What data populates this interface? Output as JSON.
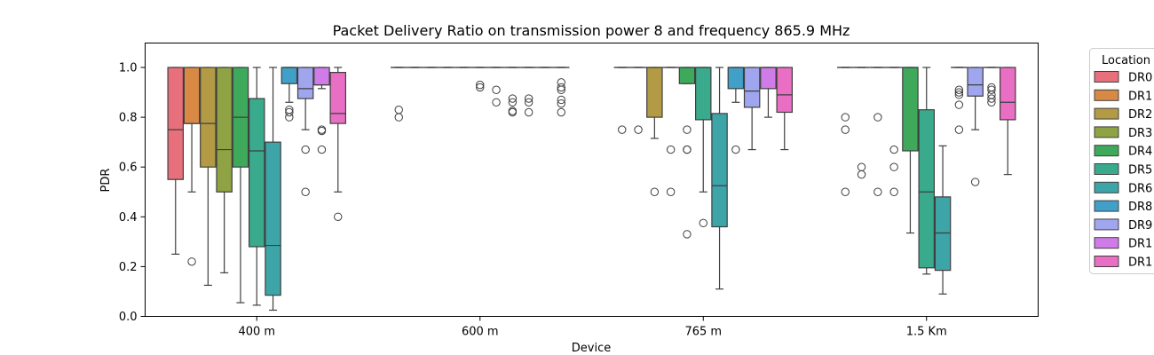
{
  "chart_data": {
    "type": "box",
    "title": "Packet Delivery Ratio on transmission power 8 and frequency 865.9 MHz",
    "xlabel": "Device",
    "ylabel": "PDR",
    "ylim": [
      0,
      1.1
    ],
    "yticks": [
      "0.0",
      "0.2",
      "0.4",
      "0.6",
      "0.8",
      "1.0"
    ],
    "grid": false,
    "legend": {
      "title": "Location",
      "placement": "right",
      "entries": [
        {
          "label": "DR0",
          "color": "#e8707c"
        },
        {
          "label": "DR1",
          "color": "#d88a45"
        },
        {
          "label": "DR2",
          "color": "#b39a45"
        },
        {
          "label": "DR3",
          "color": "#8fa244"
        },
        {
          "label": "DR4",
          "color": "#3ea95a"
        },
        {
          "label": "DR5",
          "color": "#3aaa8c"
        },
        {
          "label": "DR6",
          "color": "#3da5a8"
        },
        {
          "label": "DR8",
          "color": "#41a0c8"
        },
        {
          "label": "DR9",
          "color": "#a0a6ee"
        },
        {
          "label": "DR1",
          "color": "#d07ce8"
        },
        {
          "label": "DR1",
          "color": "#e86fc4"
        }
      ]
    },
    "categories": [
      "400 m",
      "600 m",
      "765 m",
      "1.5 Km"
    ],
    "series": [
      {
        "label_index": 0,
        "boxes": [
          {
            "q1": 0.55,
            "median": 0.75,
            "q3": 1.0,
            "whislo": 0.25,
            "whishi": 1.0,
            "fliers": []
          },
          {
            "q1": 1.0,
            "median": 1.0,
            "q3": 1.0,
            "whislo": 1.0,
            "whishi": 1.0,
            "fliers": [
              0.83,
              0.8
            ]
          },
          {
            "q1": 1.0,
            "median": 1.0,
            "q3": 1.0,
            "whislo": 1.0,
            "whishi": 1.0,
            "fliers": [
              0.75
            ]
          },
          {
            "q1": 1.0,
            "median": 1.0,
            "q3": 1.0,
            "whislo": 1.0,
            "whishi": 1.0,
            "fliers": [
              0.8,
              0.75,
              0.5
            ]
          }
        ]
      },
      {
        "label_index": 1,
        "boxes": [
          {
            "q1": 0.775,
            "median": 0.775,
            "q3": 1.0,
            "whislo": 0.5,
            "whishi": 1.0,
            "fliers": [
              0.22
            ]
          },
          {
            "q1": 1.0,
            "median": 1.0,
            "q3": 1.0,
            "whislo": 1.0,
            "whishi": 1.0,
            "fliers": []
          },
          {
            "q1": 1.0,
            "median": 1.0,
            "q3": 1.0,
            "whislo": 1.0,
            "whishi": 1.0,
            "fliers": [
              0.75
            ]
          },
          {
            "q1": 1.0,
            "median": 1.0,
            "q3": 1.0,
            "whislo": 1.0,
            "whishi": 1.0,
            "fliers": [
              0.6,
              0.57
            ]
          }
        ]
      },
      {
        "label_index": 2,
        "boxes": [
          {
            "q1": 0.6,
            "median": 0.775,
            "q3": 1.0,
            "whislo": 0.125,
            "whishi": 1.0,
            "fliers": []
          },
          {
            "q1": 1.0,
            "median": 1.0,
            "q3": 1.0,
            "whislo": 1.0,
            "whishi": 1.0,
            "fliers": []
          },
          {
            "q1": 0.8,
            "median": 1.0,
            "q3": 1.0,
            "whislo": 0.715,
            "whishi": 1.0,
            "fliers": [
              0.5
            ]
          },
          {
            "q1": 1.0,
            "median": 1.0,
            "q3": 1.0,
            "whislo": 1.0,
            "whishi": 1.0,
            "fliers": [
              0.8,
              0.5
            ]
          }
        ]
      },
      {
        "label_index": 3,
        "boxes": [
          {
            "q1": 0.5,
            "median": 0.67,
            "q3": 1.0,
            "whislo": 0.175,
            "whishi": 1.0,
            "fliers": []
          },
          {
            "q1": 1.0,
            "median": 1.0,
            "q3": 1.0,
            "whislo": 1.0,
            "whishi": 1.0,
            "fliers": []
          },
          {
            "q1": 1.0,
            "median": 1.0,
            "q3": 1.0,
            "whislo": 1.0,
            "whishi": 1.0,
            "fliers": [
              0.67,
              0.5
            ]
          },
          {
            "q1": 1.0,
            "median": 1.0,
            "q3": 1.0,
            "whislo": 1.0,
            "whishi": 1.0,
            "fliers": [
              0.67,
              0.6,
              0.5
            ]
          }
        ]
      },
      {
        "label_index": 4,
        "boxes": [
          {
            "q1": 0.6,
            "median": 0.8,
            "q3": 1.0,
            "whislo": 0.055,
            "whishi": 1.0,
            "fliers": []
          },
          {
            "q1": 1.0,
            "median": 1.0,
            "q3": 1.0,
            "whislo": 1.0,
            "whishi": 1.0,
            "fliers": []
          },
          {
            "q1": 0.935,
            "median": 1.0,
            "q3": 1.0,
            "whislo": 0.935,
            "whishi": 1.0,
            "fliers": [
              0.75,
              0.67,
              0.67,
              0.33
            ]
          },
          {
            "q1": 0.665,
            "median": 1.0,
            "q3": 1.0,
            "whislo": 0.335,
            "whishi": 1.0,
            "fliers": []
          }
        ]
      },
      {
        "label_index": 5,
        "boxes": [
          {
            "q1": 0.28,
            "median": 0.665,
            "q3": 0.875,
            "whislo": 0.045,
            "whishi": 1.0,
            "fliers": []
          },
          {
            "q1": 1.0,
            "median": 1.0,
            "q3": 1.0,
            "whislo": 1.0,
            "whishi": 1.0,
            "fliers": [
              0.93,
              0.92
            ]
          },
          {
            "q1": 0.79,
            "median": 1.0,
            "q3": 1.0,
            "whislo": 0.5,
            "whishi": 1.0,
            "fliers": [
              0.375
            ]
          },
          {
            "q1": 0.195,
            "median": 0.5,
            "q3": 0.83,
            "whislo": 0.17,
            "whishi": 1.0,
            "fliers": []
          }
        ]
      },
      {
        "label_index": 6,
        "boxes": [
          {
            "q1": 0.085,
            "median": 0.285,
            "q3": 0.7,
            "whislo": 0.025,
            "whishi": 1.0,
            "fliers": []
          },
          {
            "q1": 1.0,
            "median": 1.0,
            "q3": 1.0,
            "whislo": 1.0,
            "whishi": 1.0,
            "fliers": [
              0.91,
              0.86
            ]
          },
          {
            "q1": 0.36,
            "median": 0.525,
            "q3": 0.815,
            "whislo": 0.11,
            "whishi": 1.0,
            "fliers": []
          },
          {
            "q1": 0.185,
            "median": 0.335,
            "q3": 0.48,
            "whislo": 0.09,
            "whishi": 0.685,
            "fliers": []
          }
        ]
      },
      {
        "label_index": 7,
        "boxes": [
          {
            "q1": 0.935,
            "median": 1.0,
            "q3": 1.0,
            "whislo": 0.86,
            "whishi": 1.0,
            "fliers": [
              0.83,
              0.82,
              0.8
            ]
          },
          {
            "q1": 1.0,
            "median": 1.0,
            "q3": 1.0,
            "whislo": 1.0,
            "whishi": 1.0,
            "fliers": [
              0.875,
              0.86,
              0.825,
              0.82
            ]
          },
          {
            "q1": 0.915,
            "median": 1.0,
            "q3": 1.0,
            "whislo": 0.86,
            "whishi": 1.0,
            "fliers": [
              0.67
            ]
          },
          {
            "q1": 1.0,
            "median": 1.0,
            "q3": 1.0,
            "whislo": 1.0,
            "whishi": 1.0,
            "fliers": [
              0.91,
              0.9,
              0.89,
              0.85,
              0.75
            ]
          }
        ]
      },
      {
        "label_index": 8,
        "boxes": [
          {
            "q1": 0.875,
            "median": 0.915,
            "q3": 1.0,
            "whislo": 0.75,
            "whishi": 1.0,
            "fliers": [
              0.67,
              0.5
            ]
          },
          {
            "q1": 1.0,
            "median": 1.0,
            "q3": 1.0,
            "whislo": 1.0,
            "whishi": 1.0,
            "fliers": [
              0.875,
              0.86,
              0.82
            ]
          },
          {
            "q1": 0.84,
            "median": 0.905,
            "q3": 1.0,
            "whislo": 0.67,
            "whishi": 1.0,
            "fliers": []
          },
          {
            "q1": 0.885,
            "median": 0.93,
            "q3": 1.0,
            "whislo": 0.75,
            "whishi": 1.0,
            "fliers": [
              0.54
            ]
          }
        ]
      },
      {
        "label_index": 9,
        "boxes": [
          {
            "q1": 0.93,
            "median": 0.93,
            "q3": 1.0,
            "whislo": 0.915,
            "whishi": 1.0,
            "fliers": [
              0.75,
              0.745,
              0.67
            ]
          },
          {
            "q1": 1.0,
            "median": 1.0,
            "q3": 1.0,
            "whislo": 1.0,
            "whishi": 1.0,
            "fliers": []
          },
          {
            "q1": 0.915,
            "median": 1.0,
            "q3": 1.0,
            "whislo": 0.8,
            "whishi": 1.0,
            "fliers": []
          },
          {
            "q1": 1.0,
            "median": 1.0,
            "q3": 1.0,
            "whislo": 1.0,
            "whishi": 1.0,
            "fliers": [
              0.92,
              0.91,
              0.89,
              0.875,
              0.86
            ]
          }
        ]
      },
      {
        "label_index": 10,
        "boxes": [
          {
            "q1": 0.775,
            "median": 0.815,
            "q3": 0.98,
            "whislo": 0.5,
            "whishi": 1.0,
            "fliers": [
              0.4
            ]
          },
          {
            "q1": 1.0,
            "median": 1.0,
            "q3": 1.0,
            "whislo": 1.0,
            "whishi": 1.0,
            "fliers": [
              0.94,
              0.92,
              0.91,
              0.87,
              0.855,
              0.82
            ]
          },
          {
            "q1": 0.82,
            "median": 0.89,
            "q3": 1.0,
            "whislo": 0.67,
            "whishi": 1.0,
            "fliers": []
          },
          {
            "q1": 0.79,
            "median": 0.86,
            "q3": 1.0,
            "whislo": 0.57,
            "whishi": 1.0,
            "fliers": []
          }
        ]
      }
    ]
  }
}
